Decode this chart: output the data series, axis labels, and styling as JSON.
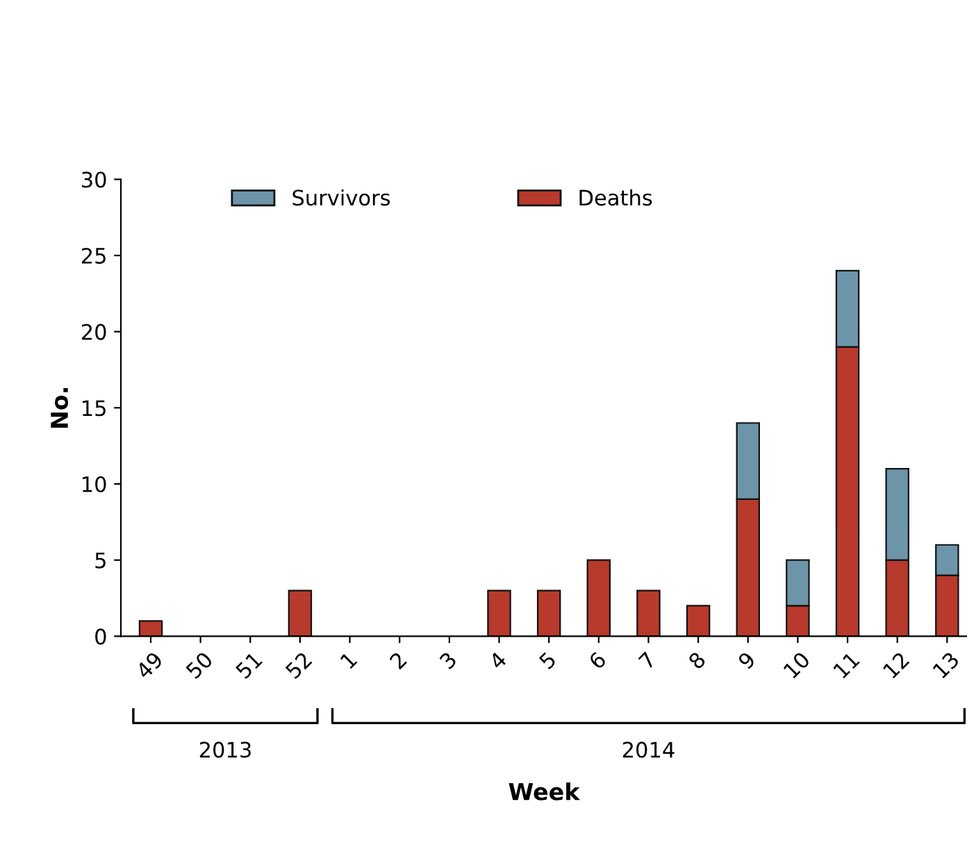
{
  "chart_data": {
    "type": "bar",
    "stacked": true,
    "xlabel": "Week",
    "ylabel": "No.",
    "categories": [
      "49",
      "50",
      "51",
      "52",
      "1",
      "2",
      "3",
      "4",
      "5",
      "6",
      "7",
      "8",
      "9",
      "10",
      "11",
      "12",
      "13"
    ],
    "series": [
      {
        "name": "Deaths",
        "color": "#b83a2c",
        "values": [
          1,
          0,
          0,
          3,
          0,
          0,
          0,
          3,
          3,
          5,
          3,
          2,
          9,
          2,
          19,
          5,
          4
        ]
      },
      {
        "name": "Survivors",
        "color": "#6d95aa",
        "values": [
          0,
          0,
          0,
          0,
          0,
          0,
          0,
          0,
          0,
          0,
          0,
          0,
          5,
          3,
          5,
          6,
          2
        ]
      }
    ],
    "ylim": [
      0,
      30
    ],
    "yticks": [
      0,
      5,
      10,
      15,
      20,
      25,
      30
    ],
    "grid": false,
    "legend": "top",
    "annotations": [
      "2013",
      "2014"
    ]
  }
}
